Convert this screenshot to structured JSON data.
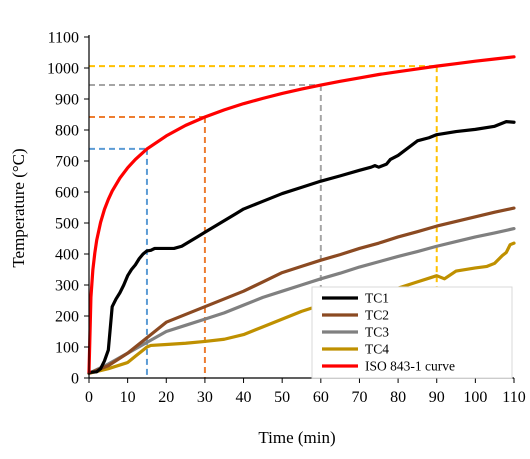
{
  "chart_data": {
    "type": "line",
    "title": "",
    "xlabel": "Time (min)",
    "ylabel": "Temperature (°C)",
    "xlim": [
      0,
      110
    ],
    "ylim": [
      0,
      1100
    ],
    "x_ticks": [
      0,
      10,
      20,
      30,
      40,
      50,
      60,
      70,
      80,
      90,
      100,
      110
    ],
    "y_ticks": [
      0,
      100,
      200,
      300,
      400,
      500,
      600,
      700,
      800,
      900,
      1000,
      1100
    ],
    "grid": false,
    "legend_position": "bottom-right",
    "series": [
      {
        "name": "TC1",
        "color": "#000000",
        "points": [
          [
            0,
            18
          ],
          [
            2,
            20
          ],
          [
            3,
            30
          ],
          [
            4,
            55
          ],
          [
            5,
            90
          ],
          [
            6,
            230
          ],
          [
            7,
            255
          ],
          [
            8,
            275
          ],
          [
            9,
            300
          ],
          [
            10,
            330
          ],
          [
            11,
            350
          ],
          [
            12,
            365
          ],
          [
            13,
            385
          ],
          [
            14,
            400
          ],
          [
            15,
            410
          ],
          [
            16,
            412
          ],
          [
            17,
            418
          ],
          [
            18,
            418
          ],
          [
            20,
            418
          ],
          [
            22,
            418
          ],
          [
            24,
            425
          ],
          [
            26,
            440
          ],
          [
            28,
            455
          ],
          [
            30,
            470
          ],
          [
            32,
            485
          ],
          [
            34,
            500
          ],
          [
            36,
            515
          ],
          [
            38,
            530
          ],
          [
            40,
            545
          ],
          [
            45,
            570
          ],
          [
            50,
            595
          ],
          [
            55,
            615
          ],
          [
            60,
            635
          ],
          [
            65,
            652
          ],
          [
            70,
            670
          ],
          [
            73,
            680
          ],
          [
            74,
            685
          ],
          [
            75,
            680
          ],
          [
            77,
            690
          ],
          [
            78,
            705
          ],
          [
            80,
            718
          ],
          [
            85,
            765
          ],
          [
            88,
            775
          ],
          [
            90,
            785
          ],
          [
            95,
            795
          ],
          [
            100,
            802
          ],
          [
            105,
            812
          ],
          [
            108,
            827
          ],
          [
            110,
            825
          ]
        ]
      },
      {
        "name": "TC2",
        "color": "#8B4A22",
        "points": [
          [
            0,
            15
          ],
          [
            5,
            40
          ],
          [
            10,
            80
          ],
          [
            15,
            130
          ],
          [
            20,
            180
          ],
          [
            25,
            205
          ],
          [
            30,
            230
          ],
          [
            35,
            255
          ],
          [
            40,
            280
          ],
          [
            45,
            310
          ],
          [
            50,
            340
          ],
          [
            55,
            360
          ],
          [
            60,
            380
          ],
          [
            65,
            398
          ],
          [
            70,
            418
          ],
          [
            75,
            435
          ],
          [
            80,
            455
          ],
          [
            85,
            472
          ],
          [
            90,
            490
          ],
          [
            95,
            505
          ],
          [
            100,
            520
          ],
          [
            105,
            535
          ],
          [
            110,
            548
          ]
        ]
      },
      {
        "name": "TC3",
        "color": "#808080",
        "points": [
          [
            0,
            15
          ],
          [
            5,
            45
          ],
          [
            10,
            80
          ],
          [
            15,
            115
          ],
          [
            20,
            150
          ],
          [
            25,
            170
          ],
          [
            30,
            190
          ],
          [
            35,
            210
          ],
          [
            40,
            235
          ],
          [
            45,
            260
          ],
          [
            50,
            280
          ],
          [
            55,
            300
          ],
          [
            60,
            320
          ],
          [
            65,
            338
          ],
          [
            70,
            358
          ],
          [
            75,
            375
          ],
          [
            80,
            392
          ],
          [
            85,
            408
          ],
          [
            90,
            425
          ],
          [
            95,
            440
          ],
          [
            100,
            455
          ],
          [
            105,
            468
          ],
          [
            110,
            482
          ]
        ]
      },
      {
        "name": "TC4",
        "color": "#BF9000",
        "points": [
          [
            0,
            15
          ],
          [
            5,
            30
          ],
          [
            10,
            50
          ],
          [
            12,
            70
          ],
          [
            14,
            90
          ],
          [
            15,
            100
          ],
          [
            16,
            105
          ],
          [
            20,
            108
          ],
          [
            25,
            112
          ],
          [
            30,
            118
          ],
          [
            35,
            125
          ],
          [
            40,
            140
          ],
          [
            45,
            165
          ],
          [
            50,
            190
          ],
          [
            55,
            215
          ],
          [
            60,
            235
          ],
          [
            65,
            250
          ],
          [
            70,
            265
          ],
          [
            75,
            280
          ],
          [
            80,
            290
          ],
          [
            85,
            310
          ],
          [
            88,
            322
          ],
          [
            90,
            330
          ],
          [
            92,
            320
          ],
          [
            95,
            345
          ],
          [
            100,
            355
          ],
          [
            103,
            360
          ],
          [
            105,
            370
          ],
          [
            107,
            395
          ],
          [
            108,
            405
          ],
          [
            109,
            430
          ],
          [
            110,
            435
          ]
        ]
      },
      {
        "name": "ISO 843-1 curve",
        "color": "#FF0000",
        "points": [
          [
            0,
            20
          ],
          [
            0.5,
            261
          ],
          [
            1,
            349
          ],
          [
            1.5,
            403
          ],
          [
            2,
            445
          ],
          [
            3,
            502
          ],
          [
            4,
            544
          ],
          [
            5,
            576
          ],
          [
            6,
            603
          ],
          [
            8,
            645
          ],
          [
            10,
            678
          ],
          [
            12,
            705
          ],
          [
            15,
            739
          ],
          [
            20,
            781
          ],
          [
            25,
            815
          ],
          [
            30,
            842
          ],
          [
            35,
            865
          ],
          [
            40,
            885
          ],
          [
            45,
            902
          ],
          [
            50,
            918
          ],
          [
            55,
            932
          ],
          [
            60,
            945
          ],
          [
            65,
            957
          ],
          [
            70,
            968
          ],
          [
            75,
            979
          ],
          [
            80,
            988
          ],
          [
            85,
            997
          ],
          [
            90,
            1006
          ],
          [
            95,
            1014
          ],
          [
            100,
            1022
          ],
          [
            105,
            1029
          ],
          [
            110,
            1036
          ]
        ]
      }
    ],
    "reference_lines": [
      {
        "time": 15,
        "temperature": 739,
        "color": "#5B9BD5"
      },
      {
        "time": 30,
        "temperature": 842,
        "color": "#ED7D31"
      },
      {
        "time": 60,
        "temperature": 945,
        "color": "#A5A5A5"
      },
      {
        "time": 90,
        "temperature": 1006,
        "color": "#FFC000"
      }
    ]
  }
}
